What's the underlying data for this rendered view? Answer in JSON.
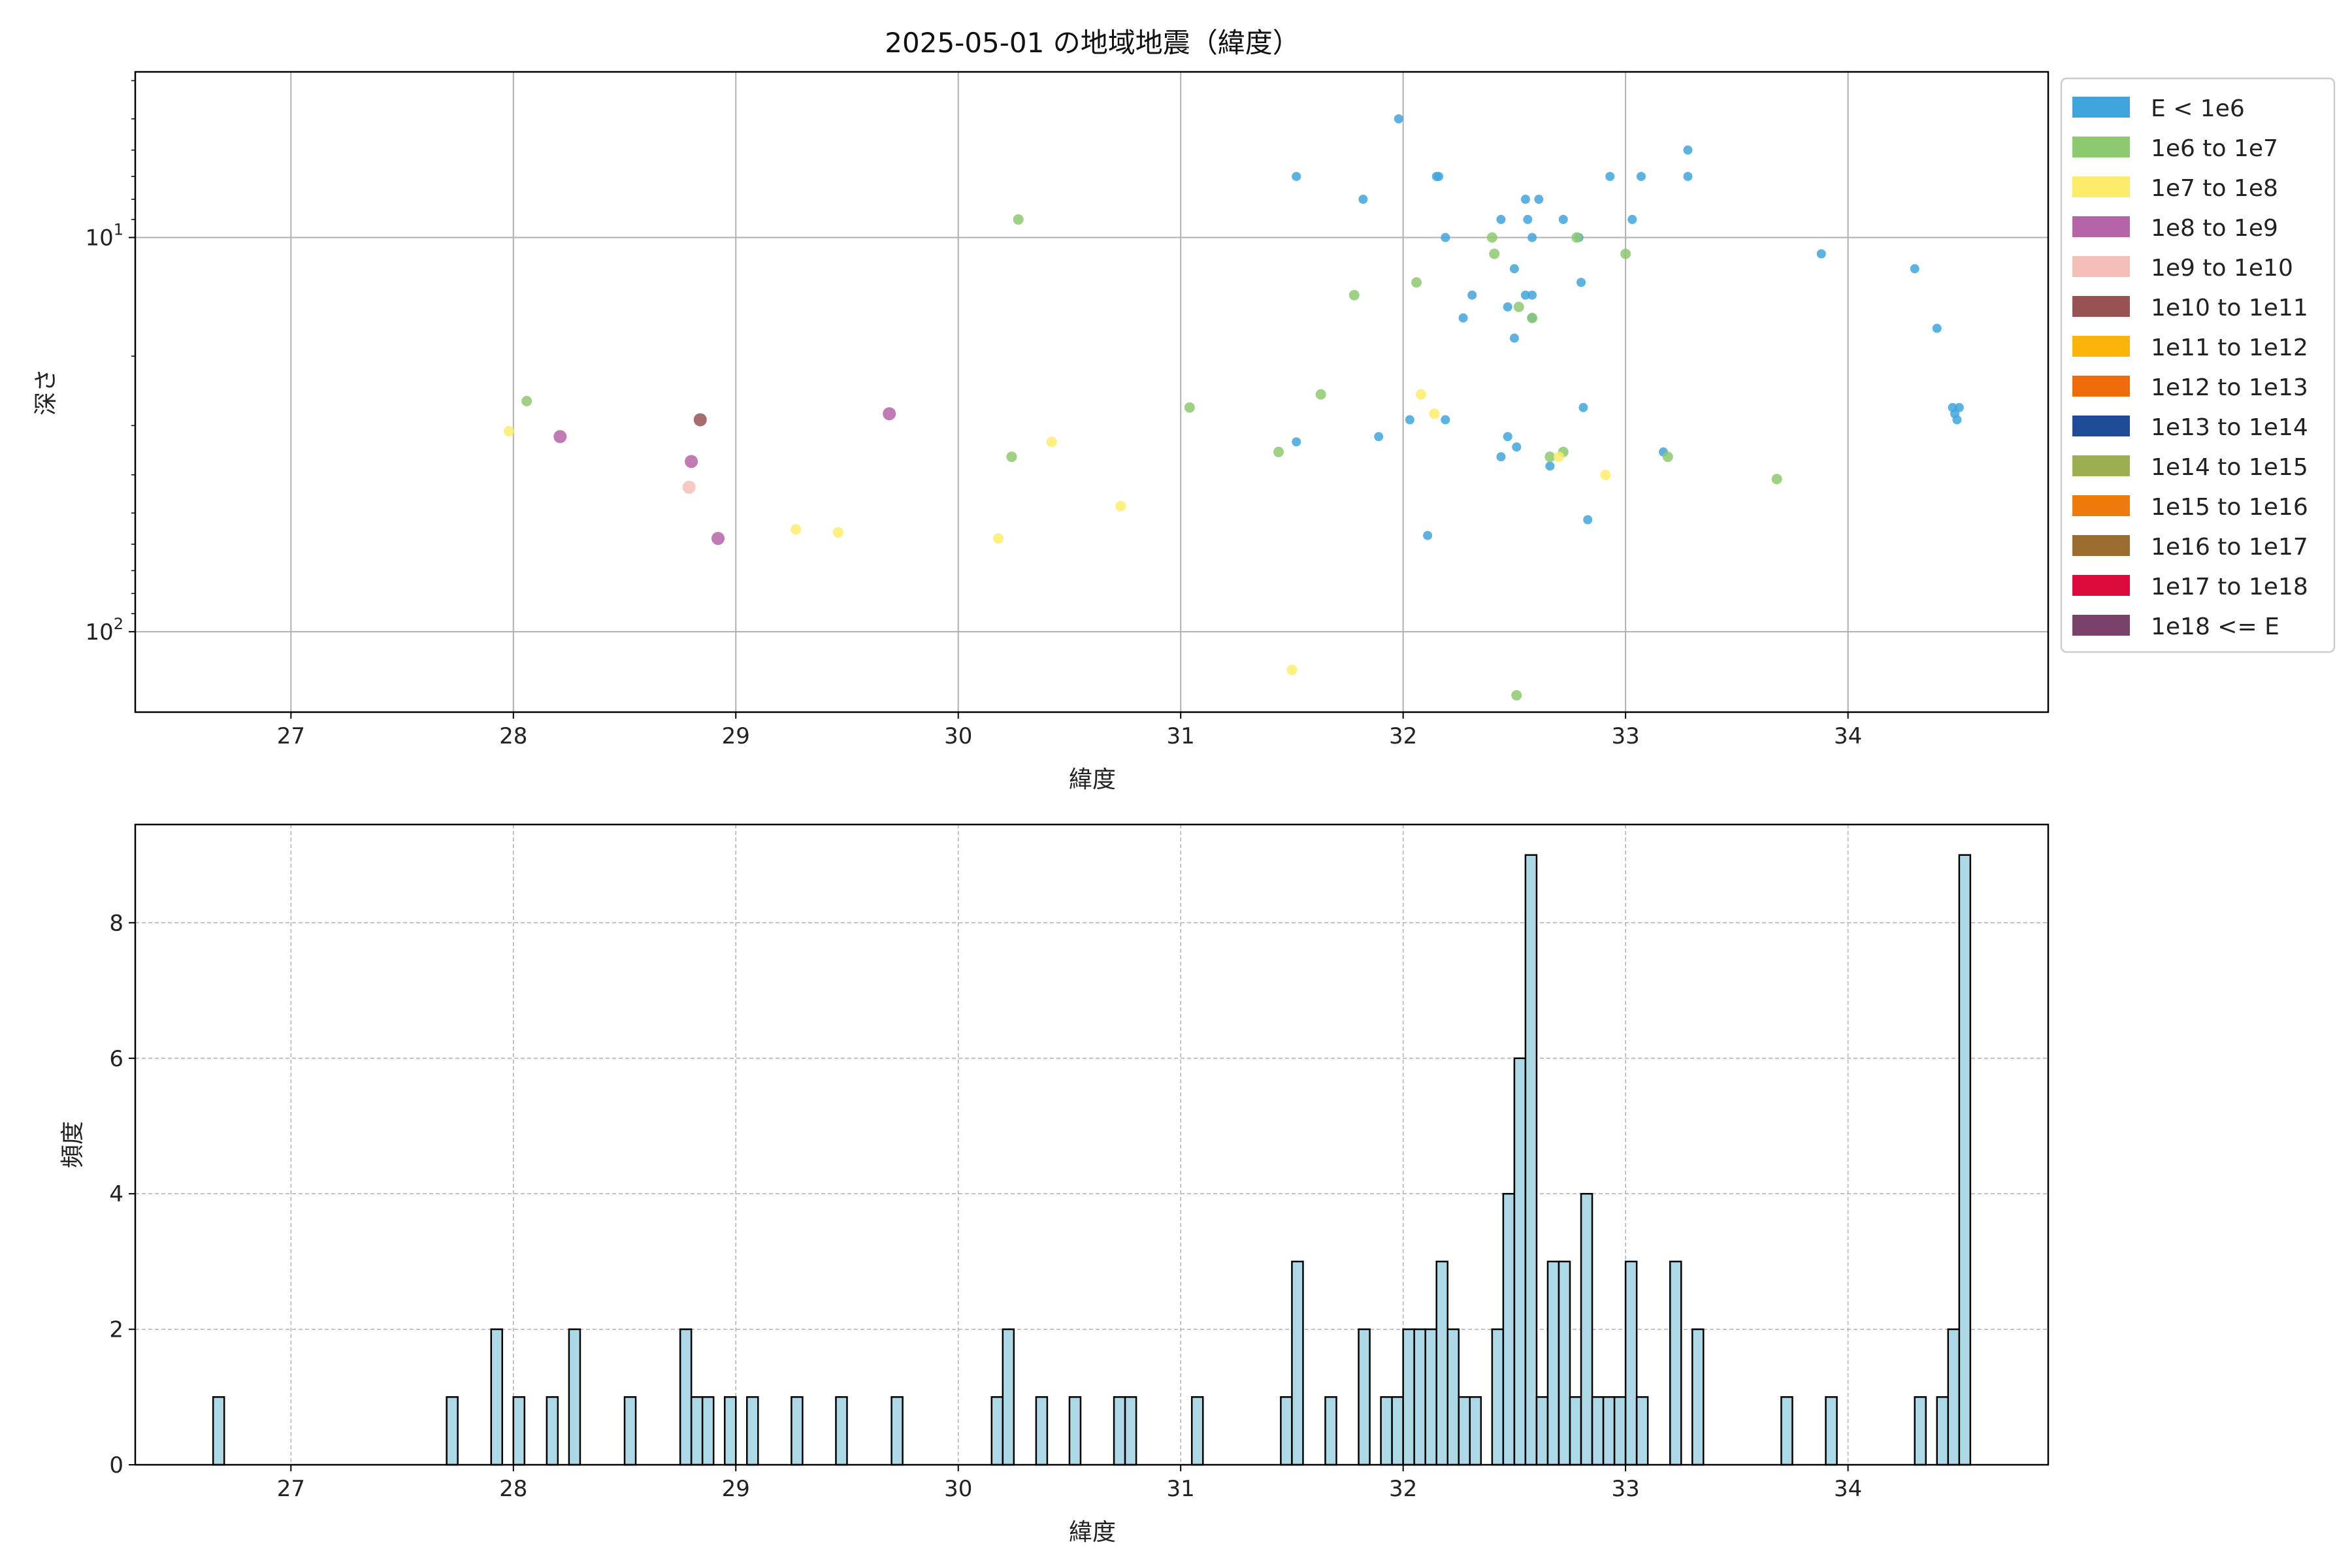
{
  "chart_data": [
    {
      "type": "scatter",
      "title": "2025-05-01 の地域地震（緯度）",
      "xlabel": "緯度",
      "ylabel": "深さ",
      "xlim": [
        26.3,
        34.9
      ],
      "ylim": [
        160,
        3.8
      ],
      "yscale": "log",
      "y_inverted": true,
      "grid": true,
      "xticks": [
        "27",
        "28",
        "29",
        "30",
        "31",
        "32",
        "33",
        "34"
      ],
      "ytick_labels": [
        {
          "value": 10,
          "base": "10",
          "exp": "1"
        },
        {
          "value": 100,
          "base": "10",
          "exp": "2"
        }
      ],
      "legend_position": "outside-right",
      "series": [
        {
          "name": "E < 1e6",
          "color": "#3fa4dc",
          "points": [
            [
              31.98,
              5
            ],
            [
              31.52,
              7
            ],
            [
              32.15,
              7
            ],
            [
              32.16,
              7
            ],
            [
              31.82,
              8
            ],
            [
              32.55,
              8
            ],
            [
              32.61,
              8
            ],
            [
              32.56,
              9
            ],
            [
              32.72,
              9
            ],
            [
              32.44,
              9
            ],
            [
              33.03,
              9
            ],
            [
              32.93,
              7
            ],
            [
              33.07,
              7
            ],
            [
              33.28,
              6
            ],
            [
              33.28,
              7
            ],
            [
              32.19,
              10
            ],
            [
              32.58,
              10
            ],
            [
              32.79,
              10
            ],
            [
              33.88,
              11
            ],
            [
              34.3,
              12
            ],
            [
              32.5,
              12
            ],
            [
              32.8,
              13
            ],
            [
              32.31,
              14
            ],
            [
              32.55,
              14
            ],
            [
              32.58,
              14
            ],
            [
              32.47,
              15
            ],
            [
              32.27,
              16
            ],
            [
              32.58,
              16
            ],
            [
              34.4,
              17
            ],
            [
              32.5,
              18
            ],
            [
              34.47,
              27
            ],
            [
              34.5,
              27
            ],
            [
              34.48,
              28
            ],
            [
              34.49,
              29
            ],
            [
              32.81,
              27
            ],
            [
              32.03,
              29
            ],
            [
              32.19,
              29
            ],
            [
              31.89,
              32
            ],
            [
              31.52,
              33
            ],
            [
              32.47,
              32
            ],
            [
              32.51,
              34
            ],
            [
              32.44,
              36
            ],
            [
              32.66,
              38
            ],
            [
              33.17,
              35
            ],
            [
              32.83,
              52
            ],
            [
              32.11,
              57
            ]
          ]
        },
        {
          "name": "1e6 to 1e7",
          "color": "#8dc96f",
          "points": [
            [
              30.27,
              9
            ],
            [
              32.4,
              10
            ],
            [
              32.78,
              10
            ],
            [
              32.41,
              11
            ],
            [
              33.0,
              11
            ],
            [
              32.06,
              13
            ],
            [
              31.78,
              14
            ],
            [
              32.52,
              15
            ],
            [
              32.58,
              16
            ],
            [
              31.63,
              25
            ],
            [
              28.06,
              26
            ],
            [
              31.04,
              27
            ],
            [
              31.44,
              35
            ],
            [
              30.24,
              36
            ],
            [
              32.66,
              36
            ],
            [
              32.72,
              35
            ],
            [
              33.19,
              36
            ],
            [
              33.68,
              41
            ],
            [
              32.51,
              145
            ]
          ]
        },
        {
          "name": "1e7 to 1e8",
          "color": "#fdec6a",
          "points": [
            [
              32.08,
              25
            ],
            [
              32.14,
              28
            ],
            [
              27.98,
              31
            ],
            [
              30.42,
              33
            ],
            [
              32.7,
              36
            ],
            [
              32.91,
              40
            ],
            [
              30.73,
              48
            ],
            [
              29.27,
              55
            ],
            [
              29.46,
              56
            ],
            [
              30.18,
              58
            ],
            [
              31.5,
              125
            ]
          ]
        },
        {
          "name": "1e8 to 1e9",
          "color": "#b564a8",
          "points": [
            [
              29.69,
              28
            ],
            [
              28.21,
              32
            ],
            [
              28.8,
              37
            ],
            [
              28.92,
              58
            ]
          ]
        },
        {
          "name": "1e9 to 1e10",
          "color": "#f4bfb8",
          "points": [
            [
              28.79,
              43
            ]
          ]
        },
        {
          "name": "1e10 to 1e11",
          "color": "#985252",
          "points": [
            [
              28.84,
              29
            ]
          ]
        },
        {
          "name": "1e11 to 1e12",
          "color": "#fbb40a",
          "points": []
        },
        {
          "name": "1e12 to 1e13",
          "color": "#ef6a08",
          "points": []
        },
        {
          "name": "1e13 to 1e14",
          "color": "#1d4b96",
          "points": []
        },
        {
          "name": "1e14 to 1e15",
          "color": "#9caf50",
          "points": []
        },
        {
          "name": "1e15 to 1e16",
          "color": "#ef7a0c",
          "points": []
        },
        {
          "name": "1e16 to 1e17",
          "color": "#9a6d2e",
          "points": []
        },
        {
          "name": "1e17 to 1e18",
          "color": "#dc0b3c",
          "points": []
        },
        {
          "name": "1e18 <= E",
          "color": "#7a426b",
          "points": []
        }
      ]
    },
    {
      "type": "bar",
      "subtype": "histogram",
      "xlabel": "緯度",
      "ylabel": "頻度",
      "xlim": [
        26.3,
        34.9
      ],
      "ylim": [
        0,
        9.45
      ],
      "grid": true,
      "bin_width": 0.05,
      "bar_color": "#add8e6",
      "edge_color": "#000000",
      "xticks": [
        "27",
        "28",
        "29",
        "30",
        "31",
        "32",
        "33",
        "34"
      ],
      "yticks": [
        "0",
        "2",
        "4",
        "6",
        "8"
      ],
      "bins": [
        [
          26.65,
          1
        ],
        [
          27.7,
          1
        ],
        [
          27.9,
          2
        ],
        [
          28.0,
          1
        ],
        [
          28.15,
          1
        ],
        [
          28.25,
          2
        ],
        [
          28.5,
          1
        ],
        [
          28.75,
          2
        ],
        [
          28.8,
          1
        ],
        [
          28.85,
          1
        ],
        [
          28.95,
          1
        ],
        [
          29.05,
          1
        ],
        [
          29.25,
          1
        ],
        [
          29.45,
          1
        ],
        [
          29.7,
          1
        ],
        [
          30.15,
          1
        ],
        [
          30.2,
          2
        ],
        [
          30.35,
          1
        ],
        [
          30.5,
          1
        ],
        [
          30.7,
          1
        ],
        [
          30.75,
          1
        ],
        [
          31.05,
          1
        ],
        [
          31.45,
          1
        ],
        [
          31.5,
          3
        ],
        [
          31.65,
          1
        ],
        [
          31.8,
          2
        ],
        [
          31.9,
          1
        ],
        [
          31.95,
          1
        ],
        [
          32.0,
          2
        ],
        [
          32.05,
          2
        ],
        [
          32.1,
          2
        ],
        [
          32.15,
          3
        ],
        [
          32.2,
          2
        ],
        [
          32.25,
          1
        ],
        [
          32.3,
          1
        ],
        [
          32.4,
          2
        ],
        [
          32.45,
          4
        ],
        [
          32.5,
          6
        ],
        [
          32.55,
          9
        ],
        [
          32.6,
          1
        ],
        [
          32.65,
          3
        ],
        [
          32.7,
          3
        ],
        [
          32.75,
          1
        ],
        [
          32.8,
          4
        ],
        [
          32.85,
          1
        ],
        [
          32.9,
          1
        ],
        [
          32.95,
          1
        ],
        [
          33.0,
          3
        ],
        [
          33.05,
          1
        ],
        [
          33.2,
          3
        ],
        [
          33.3,
          2
        ],
        [
          33.7,
          1
        ],
        [
          33.9,
          1
        ],
        [
          34.3,
          1
        ],
        [
          34.4,
          1
        ],
        [
          34.45,
          2
        ],
        [
          34.5,
          9
        ]
      ]
    }
  ]
}
